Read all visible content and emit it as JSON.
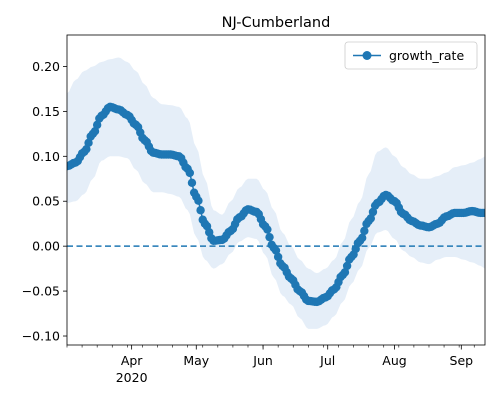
{
  "chart_data": {
    "type": "line",
    "title": "NJ-Cumberland",
    "xlabel": "",
    "ylabel": "",
    "x_axis": {
      "kind": "date",
      "range": [
        "2020-03-02",
        "2020-09-12"
      ],
      "major_ticks": [
        {
          "date": "2020-04-01",
          "label": "Apr",
          "sublabel": "2020"
        },
        {
          "date": "2020-05-01",
          "label": "May"
        },
        {
          "date": "2020-06-01",
          "label": "Jun"
        },
        {
          "date": "2020-07-01",
          "label": "Jul"
        },
        {
          "date": "2020-08-01",
          "label": "Aug"
        },
        {
          "date": "2020-09-01",
          "label": "Sep"
        }
      ],
      "minor_ticks_weekly": true
    },
    "ylim": [
      -0.11,
      0.235
    ],
    "y_ticks": [
      {
        "value": -0.1,
        "label": "−0.10"
      },
      {
        "value": -0.05,
        "label": "−0.05"
      },
      {
        "value": 0.0,
        "label": "0.00"
      },
      {
        "value": 0.05,
        "label": "0.05"
      },
      {
        "value": 0.1,
        "label": "0.10"
      },
      {
        "value": 0.15,
        "label": "0.15"
      },
      {
        "value": 0.2,
        "label": "0.20"
      }
    ],
    "grid": false,
    "legend": {
      "position": "top-right",
      "entries": [
        "growth_rate"
      ]
    },
    "reference_line": {
      "y": 0,
      "style": "dashed"
    },
    "series": [
      {
        "name": "growth_rate",
        "color": "#1f77b4",
        "marker": "circle",
        "band_color": "#dce8f5",
        "points": [
          {
            "x": "2020-03-02",
            "y": 0.089,
            "lo": 0.048,
            "hi": 0.17
          },
          {
            "x": "2020-03-06",
            "y": 0.093,
            "lo": 0.05,
            "hi": 0.185
          },
          {
            "x": "2020-03-10",
            "y": 0.105,
            "lo": 0.058,
            "hi": 0.195
          },
          {
            "x": "2020-03-14",
            "y": 0.125,
            "lo": 0.075,
            "hi": 0.2
          },
          {
            "x": "2020-03-18",
            "y": 0.145,
            "lo": 0.095,
            "hi": 0.205
          },
          {
            "x": "2020-03-22",
            "y": 0.155,
            "lo": 0.1,
            "hi": 0.208
          },
          {
            "x": "2020-03-26",
            "y": 0.152,
            "lo": 0.1,
            "hi": 0.21
          },
          {
            "x": "2020-03-30",
            "y": 0.146,
            "lo": 0.098,
            "hi": 0.205
          },
          {
            "x": "2020-04-03",
            "y": 0.135,
            "lo": 0.085,
            "hi": 0.195
          },
          {
            "x": "2020-04-07",
            "y": 0.118,
            "lo": 0.07,
            "hi": 0.18
          },
          {
            "x": "2020-04-11",
            "y": 0.104,
            "lo": 0.06,
            "hi": 0.165
          },
          {
            "x": "2020-04-15",
            "y": 0.102,
            "lo": 0.06,
            "hi": 0.158
          },
          {
            "x": "2020-04-19",
            "y": 0.102,
            "lo": 0.058,
            "hi": 0.157
          },
          {
            "x": "2020-04-23",
            "y": 0.1,
            "lo": 0.055,
            "hi": 0.155
          },
          {
            "x": "2020-04-27",
            "y": 0.086,
            "lo": 0.04,
            "hi": 0.142
          },
          {
            "x": "2020-05-01",
            "y": 0.055,
            "lo": 0.01,
            "hi": 0.11
          },
          {
            "x": "2020-05-05",
            "y": 0.025,
            "lo": -0.015,
            "hi": 0.075
          },
          {
            "x": "2020-05-09",
            "y": 0.006,
            "lo": -0.025,
            "hi": 0.04
          },
          {
            "x": "2020-05-13",
            "y": 0.007,
            "lo": -0.02,
            "hi": 0.035
          },
          {
            "x": "2020-05-17",
            "y": 0.017,
            "lo": -0.008,
            "hi": 0.05
          },
          {
            "x": "2020-05-21",
            "y": 0.032,
            "lo": 0.005,
            "hi": 0.065
          },
          {
            "x": "2020-05-25",
            "y": 0.041,
            "lo": 0.01,
            "hi": 0.075
          },
          {
            "x": "2020-05-29",
            "y": 0.038,
            "lo": 0.008,
            "hi": 0.075
          },
          {
            "x": "2020-06-02",
            "y": 0.022,
            "lo": -0.01,
            "hi": 0.062
          },
          {
            "x": "2020-06-06",
            "y": -0.002,
            "lo": -0.035,
            "hi": 0.04
          },
          {
            "x": "2020-06-10",
            "y": -0.022,
            "lo": -0.055,
            "hi": 0.015
          },
          {
            "x": "2020-06-14",
            "y": -0.036,
            "lo": -0.065,
            "hi": 0.0
          },
          {
            "x": "2020-06-18",
            "y": -0.05,
            "lo": -0.08,
            "hi": -0.015
          },
          {
            "x": "2020-06-22",
            "y": -0.061,
            "lo": -0.092,
            "hi": -0.025
          },
          {
            "x": "2020-06-26",
            "y": -0.062,
            "lo": -0.092,
            "hi": -0.03
          },
          {
            "x": "2020-06-30",
            "y": -0.057,
            "lo": -0.088,
            "hi": -0.025
          },
          {
            "x": "2020-07-04",
            "y": -0.048,
            "lo": -0.078,
            "hi": -0.015
          },
          {
            "x": "2020-07-08",
            "y": -0.032,
            "lo": -0.062,
            "hi": 0.005
          },
          {
            "x": "2020-07-12",
            "y": -0.012,
            "lo": -0.042,
            "hi": 0.03
          },
          {
            "x": "2020-07-16",
            "y": 0.006,
            "lo": -0.025,
            "hi": 0.05
          },
          {
            "x": "2020-07-20",
            "y": 0.028,
            "lo": -0.002,
            "hi": 0.08
          },
          {
            "x": "2020-07-24",
            "y": 0.048,
            "lo": 0.015,
            "hi": 0.105
          },
          {
            "x": "2020-07-28",
            "y": 0.057,
            "lo": 0.018,
            "hi": 0.11
          },
          {
            "x": "2020-08-01",
            "y": 0.05,
            "lo": 0.008,
            "hi": 0.1
          },
          {
            "x": "2020-08-05",
            "y": 0.036,
            "lo": -0.005,
            "hi": 0.088
          },
          {
            "x": "2020-08-09",
            "y": 0.028,
            "lo": -0.012,
            "hi": 0.08
          },
          {
            "x": "2020-08-13",
            "y": 0.023,
            "lo": -0.018,
            "hi": 0.075
          },
          {
            "x": "2020-08-17",
            "y": 0.021,
            "lo": -0.02,
            "hi": 0.075
          },
          {
            "x": "2020-08-21",
            "y": 0.025,
            "lo": -0.015,
            "hi": 0.078
          },
          {
            "x": "2020-08-25",
            "y": 0.033,
            "lo": -0.012,
            "hi": 0.082
          },
          {
            "x": "2020-08-29",
            "y": 0.037,
            "lo": -0.012,
            "hi": 0.088
          },
          {
            "x": "2020-09-02",
            "y": 0.037,
            "lo": -0.015,
            "hi": 0.09
          },
          {
            "x": "2020-09-06",
            "y": 0.039,
            "lo": -0.018,
            "hi": 0.093
          },
          {
            "x": "2020-09-10",
            "y": 0.037,
            "lo": -0.022,
            "hi": 0.097
          },
          {
            "x": "2020-09-12",
            "y": 0.037,
            "lo": -0.025,
            "hi": 0.1
          }
        ]
      }
    ]
  }
}
